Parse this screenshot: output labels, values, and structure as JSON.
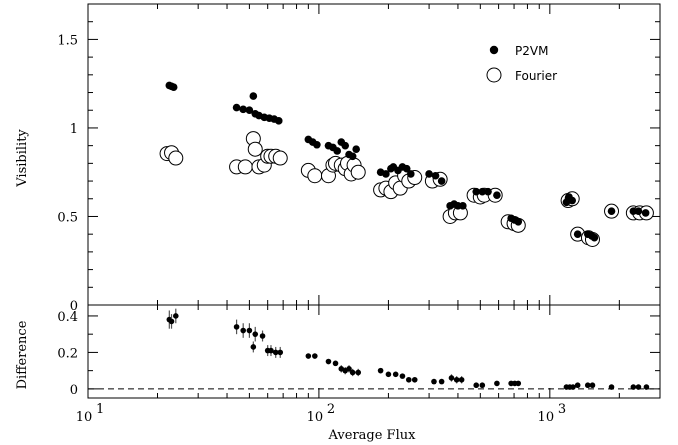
{
  "chart_data": [
    {
      "type": "scatter",
      "xlabel": "",
      "ylabel": "Visibility",
      "xscale": "log",
      "xlim": [
        10,
        3000
      ],
      "ylim": [
        0,
        1.7
      ],
      "yticks": [
        "0",
        "0.5",
        "1",
        "1.5"
      ],
      "legend": [
        {
          "name": "P2VM",
          "marker": "filled-circle"
        },
        {
          "name": "Fourier",
          "marker": "open-circle"
        }
      ],
      "legend_placement": "top-right",
      "series": [
        {
          "name": "P2VM",
          "marker": "filled-circle",
          "points": [
            [
              22.5,
              1.24
            ],
            [
              23,
              1.235
            ],
            [
              23.5,
              1.23
            ],
            [
              44,
              1.115
            ],
            [
              47,
              1.105
            ],
            [
              50,
              1.1
            ],
            [
              52,
              1.18
            ],
            [
              53,
              1.08
            ],
            [
              55,
              1.07
            ],
            [
              58,
              1.06
            ],
            [
              61,
              1.055
            ],
            [
              64,
              1.05
            ],
            [
              67,
              1.04
            ],
            [
              90,
              0.935
            ],
            [
              94,
              0.92
            ],
            [
              98,
              0.905
            ],
            [
              110,
              0.9
            ],
            [
              115,
              0.89
            ],
            [
              120,
              0.87
            ],
            [
              125,
              0.92
            ],
            [
              130,
              0.9
            ],
            [
              135,
              0.85
            ],
            [
              140,
              0.84
            ],
            [
              145,
              0.88
            ],
            [
              185,
              0.75
            ],
            [
              195,
              0.74
            ],
            [
              205,
              0.77
            ],
            [
              210,
              0.78
            ],
            [
              220,
              0.76
            ],
            [
              230,
              0.78
            ],
            [
              240,
              0.77
            ],
            [
              250,
              0.74
            ],
            [
              300,
              0.74
            ],
            [
              320,
              0.73
            ],
            [
              340,
              0.7
            ],
            [
              370,
              0.56
            ],
            [
              385,
              0.57
            ],
            [
              400,
              0.56
            ],
            [
              420,
              0.56
            ],
            [
              480,
              0.64
            ],
            [
              510,
              0.64
            ],
            [
              540,
              0.64
            ],
            [
              590,
              0.62
            ],
            [
              680,
              0.49
            ],
            [
              705,
              0.48
            ],
            [
              730,
              0.47
            ],
            [
              1180,
              0.58
            ],
            [
              1210,
              0.61
            ],
            [
              1250,
              0.59
            ],
            [
              1320,
              0.4
            ],
            [
              1460,
              0.4
            ],
            [
              1520,
              0.39
            ],
            [
              1560,
              0.38
            ],
            [
              1850,
              0.53
            ],
            [
              2300,
              0.53
            ],
            [
              2420,
              0.53
            ],
            [
              2600,
              0.52
            ]
          ]
        },
        {
          "name": "Fourier",
          "marker": "open-circle",
          "points": [
            [
              22,
              0.855
            ],
            [
              23,
              0.86
            ],
            [
              24,
              0.83
            ],
            [
              44,
              0.78
            ],
            [
              48,
              0.78
            ],
            [
              52,
              0.94
            ],
            [
              53,
              0.88
            ],
            [
              55,
              0.78
            ],
            [
              58,
              0.79
            ],
            [
              60,
              0.84
            ],
            [
              62,
              0.84
            ],
            [
              65,
              0.84
            ],
            [
              68,
              0.83
            ],
            [
              90,
              0.76
            ],
            [
              96,
              0.73
            ],
            [
              110,
              0.73
            ],
            [
              115,
              0.79
            ],
            [
              118,
              0.8
            ],
            [
              125,
              0.79
            ],
            [
              130,
              0.77
            ],
            [
              133,
              0.8
            ],
            [
              138,
              0.74
            ],
            [
              142,
              0.79
            ],
            [
              148,
              0.75
            ],
            [
              185,
              0.65
            ],
            [
              195,
              0.66
            ],
            [
              205,
              0.64
            ],
            [
              215,
              0.69
            ],
            [
              225,
              0.66
            ],
            [
              235,
              0.73
            ],
            [
              245,
              0.7
            ],
            [
              260,
              0.72
            ],
            [
              310,
              0.7
            ],
            [
              335,
              0.71
            ],
            [
              370,
              0.5
            ],
            [
              390,
              0.52
            ],
            [
              410,
              0.52
            ],
            [
              470,
              0.62
            ],
            [
              500,
              0.61
            ],
            [
              520,
              0.62
            ],
            [
              580,
              0.62
            ],
            [
              660,
              0.47
            ],
            [
              700,
              0.46
            ],
            [
              730,
              0.45
            ],
            [
              1200,
              0.59
            ],
            [
              1250,
              0.6
            ],
            [
              1320,
              0.4
            ],
            [
              1470,
              0.38
            ],
            [
              1530,
              0.37
            ],
            [
              1850,
              0.53
            ],
            [
              2300,
              0.52
            ],
            [
              2450,
              0.52
            ],
            [
              2620,
              0.52
            ]
          ]
        }
      ]
    },
    {
      "type": "scatter",
      "xlabel": "Average Flux",
      "ylabel": "Difference",
      "xscale": "log",
      "xlim": [
        10,
        3000
      ],
      "ylim": [
        -0.05,
        0.46
      ],
      "xticks": [
        {
          "value": 10,
          "label": "10",
          "exp": "1"
        },
        {
          "value": 100,
          "label": "10",
          "exp": "2"
        },
        {
          "value": 1000,
          "label": "10",
          "exp": "3"
        }
      ],
      "yticks": [
        "0",
        "0.2",
        "0.4"
      ],
      "reference_line": {
        "y": 0,
        "style": "dashed"
      },
      "series": [
        {
          "name": "",
          "marker": "filled-circle-with-errorbar",
          "points": [
            [
              22.5,
              0.38,
              0.05
            ],
            [
              23,
              0.37,
              0.04
            ],
            [
              24,
              0.4,
              0.04
            ],
            [
              44,
              0.34,
              0.04
            ],
            [
              47,
              0.32,
              0.04
            ],
            [
              50,
              0.32,
              0.04
            ],
            [
              52,
              0.23,
              0.03
            ],
            [
              53,
              0.3,
              0.04
            ],
            [
              57,
              0.29,
              0.03
            ],
            [
              60,
              0.21,
              0.03
            ],
            [
              62,
              0.21,
              0.03
            ],
            [
              65,
              0.2,
              0.03
            ],
            [
              68,
              0.2,
              0.03
            ],
            [
              90,
              0.18,
              0.01
            ],
            [
              96,
              0.18,
              0.01
            ],
            [
              110,
              0.15,
              0.01
            ],
            [
              118,
              0.14,
              0.01
            ],
            [
              125,
              0.11,
              0.02
            ],
            [
              130,
              0.1,
              0.02
            ],
            [
              135,
              0.11,
              0.02
            ],
            [
              140,
              0.09,
              0.02
            ],
            [
              148,
              0.09,
              0.02
            ],
            [
              185,
              0.1,
              0.01
            ],
            [
              200,
              0.08,
              0.01
            ],
            [
              215,
              0.08,
              0.01
            ],
            [
              230,
              0.07,
              0.01
            ],
            [
              245,
              0.05,
              0.01
            ],
            [
              260,
              0.05,
              0.01
            ],
            [
              315,
              0.04,
              0.01
            ],
            [
              340,
              0.04,
              0.01
            ],
            [
              375,
              0.06,
              0.02
            ],
            [
              395,
              0.05,
              0.02
            ],
            [
              415,
              0.05,
              0.02
            ],
            [
              480,
              0.02,
              0.01
            ],
            [
              510,
              0.02,
              0.01
            ],
            [
              590,
              0.03,
              0.01
            ],
            [
              680,
              0.03,
              0.01
            ],
            [
              705,
              0.03,
              0.01
            ],
            [
              730,
              0.03,
              0.01
            ],
            [
              1180,
              0.01,
              0.01
            ],
            [
              1220,
              0.01,
              0.01
            ],
            [
              1260,
              0.01,
              0.01
            ],
            [
              1320,
              0.02,
              0.01
            ],
            [
              1460,
              0.02,
              0.01
            ],
            [
              1530,
              0.02,
              0.01
            ],
            [
              1850,
              0.01,
              0.01
            ],
            [
              2300,
              0.01,
              0.01
            ],
            [
              2420,
              0.01,
              0.01
            ],
            [
              2620,
              0.01,
              0.01
            ]
          ]
        }
      ]
    }
  ]
}
